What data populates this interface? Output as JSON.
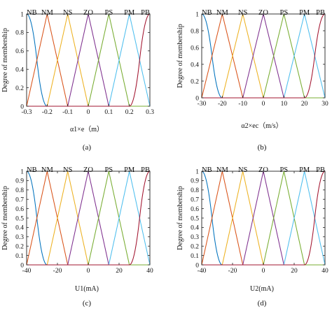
{
  "figure": {
    "colors": [
      "#0072BD",
      "#D95319",
      "#EDB120",
      "#7E2F8E",
      "#77AC30",
      "#4DBEEE",
      "#A2142F"
    ]
  },
  "chart_data": [
    {
      "type": "line",
      "panel": "a",
      "caption": "(a)",
      "xlabel": "α1×e（m）",
      "ylabel": "Degree of membership",
      "xlim": [
        -0.3,
        0.3
      ],
      "ylim": [
        0,
        1
      ],
      "xticks": [
        -0.3,
        -0.2,
        -0.1,
        0,
        0.1,
        0.2,
        0.3
      ],
      "xtick_labels": [
        "-0.3",
        "-0.2",
        "-0.1",
        "0",
        "0.1",
        "0.2",
        "0.3"
      ],
      "yticks": [
        0,
        0.2,
        0.4,
        0.6,
        0.8,
        1
      ],
      "ytick_labels": [
        "0",
        "0.2",
        "0.4",
        "0.6",
        "0.8",
        "1"
      ],
      "series": [
        {
          "name": "NB",
          "shape": "zmf",
          "params": [
            -0.3,
            -0.2
          ]
        },
        {
          "name": "NM",
          "shape": "trimf",
          "params": [
            -0.3,
            -0.2,
            -0.1
          ]
        },
        {
          "name": "NS",
          "shape": "trimf",
          "params": [
            -0.2,
            -0.1,
            0
          ]
        },
        {
          "name": "ZO",
          "shape": "trimf",
          "params": [
            -0.1,
            0,
            0.1
          ]
        },
        {
          "name": "PS",
          "shape": "trimf",
          "params": [
            0,
            0.1,
            0.2
          ]
        },
        {
          "name": "PM",
          "shape": "trimf",
          "params": [
            0.1,
            0.2,
            0.3
          ]
        },
        {
          "name": "PB",
          "shape": "smf",
          "params": [
            0.2,
            0.3
          ]
        }
      ]
    },
    {
      "type": "line",
      "panel": "b",
      "caption": "(b)",
      "xlabel": "α2×ec（m/s）",
      "ylabel": "Degree of membership",
      "xlim": [
        -30,
        30
      ],
      "ylim": [
        0,
        1
      ],
      "xticks": [
        -30,
        -20,
        -10,
        0,
        10,
        20,
        30
      ],
      "xtick_labels": [
        "-30",
        "-20",
        "-10",
        "0",
        "10",
        "20",
        "30"
      ],
      "yticks": [
        0,
        0.2,
        0.4,
        0.6,
        0.8,
        1
      ],
      "ytick_labels": [
        "0",
        "0.2",
        "0.4",
        "0.6",
        "0.8",
        "1"
      ],
      "series": [
        {
          "name": "NB",
          "shape": "zmf",
          "params": [
            -30,
            -20
          ]
        },
        {
          "name": "NM",
          "shape": "trimf",
          "params": [
            -30,
            -20,
            -10
          ]
        },
        {
          "name": "NS",
          "shape": "trimf",
          "params": [
            -20,
            -10,
            0
          ]
        },
        {
          "name": "ZO",
          "shape": "trimf",
          "params": [
            -10,
            0,
            10
          ]
        },
        {
          "name": "PS",
          "shape": "trimf",
          "params": [
            0,
            10,
            20
          ]
        },
        {
          "name": "PM",
          "shape": "trimf",
          "params": [
            10,
            20,
            30
          ]
        },
        {
          "name": "PB",
          "shape": "smf",
          "params": [
            20,
            30
          ]
        }
      ]
    },
    {
      "type": "line",
      "panel": "c",
      "caption": "(c)",
      "xlabel": "U1(mA)",
      "ylabel": "Degree of membership",
      "xlim": [
        -40,
        40
      ],
      "ylim": [
        0,
        1
      ],
      "xticks": [
        -40,
        -20,
        0,
        20,
        40
      ],
      "xtick_labels": [
        "-40",
        "-20",
        "0",
        "20",
        "40"
      ],
      "yticks": [
        0,
        0.1,
        0.2,
        0.3,
        0.4,
        0.5,
        0.6,
        0.7,
        0.8,
        0.9,
        1
      ],
      "ytick_labels": [
        "0",
        "0.1",
        "0.2",
        "0.3",
        "0.4",
        "0.5",
        "0.6",
        "0.7",
        "0.8",
        "0.9",
        "1"
      ],
      "series": [
        {
          "name": "NB",
          "shape": "zmf",
          "params": [
            -40,
            -26.67
          ]
        },
        {
          "name": "NM",
          "shape": "trimf",
          "params": [
            -40,
            -26.67,
            -13.33
          ]
        },
        {
          "name": "NS",
          "shape": "trimf",
          "params": [
            -26.67,
            -13.33,
            0
          ]
        },
        {
          "name": "ZO",
          "shape": "trimf",
          "params": [
            -13.33,
            0,
            13.33
          ]
        },
        {
          "name": "PS",
          "shape": "trimf",
          "params": [
            0,
            13.33,
            26.67
          ]
        },
        {
          "name": "PM",
          "shape": "trimf",
          "params": [
            13.33,
            26.67,
            40
          ]
        },
        {
          "name": "PB",
          "shape": "smf",
          "params": [
            26.67,
            40
          ]
        }
      ]
    },
    {
      "type": "line",
      "panel": "d",
      "caption": "(d)",
      "xlabel": "U2(mA)",
      "ylabel": "Degree of membership",
      "xlim": [
        -40,
        40
      ],
      "ylim": [
        0,
        1
      ],
      "xticks": [
        -40,
        -20,
        0,
        20,
        40
      ],
      "xtick_labels": [
        "-40",
        "-20",
        "0",
        "20",
        "40"
      ],
      "yticks": [
        0,
        0.1,
        0.2,
        0.3,
        0.4,
        0.5,
        0.6,
        0.7,
        0.8,
        0.9,
        1
      ],
      "ytick_labels": [
        "0",
        "0.1",
        "0.2",
        "0.3",
        "0.4",
        "0.5",
        "0.6",
        "0.7",
        "0.8",
        "0.9",
        "1"
      ],
      "series": [
        {
          "name": "NB",
          "shape": "zmf",
          "params": [
            -40,
            -26.67
          ]
        },
        {
          "name": "NM",
          "shape": "trimf",
          "params": [
            -40,
            -26.67,
            -13.33
          ]
        },
        {
          "name": "NS",
          "shape": "trimf",
          "params": [
            -26.67,
            -13.33,
            0
          ]
        },
        {
          "name": "ZO",
          "shape": "trimf",
          "params": [
            -13.33,
            0,
            13.33
          ]
        },
        {
          "name": "PS",
          "shape": "trimf",
          "params": [
            0,
            13.33,
            26.67
          ]
        },
        {
          "name": "PM",
          "shape": "trimf",
          "params": [
            13.33,
            26.67,
            40
          ]
        },
        {
          "name": "PB",
          "shape": "smf",
          "params": [
            26.67,
            40
          ]
        }
      ]
    }
  ]
}
